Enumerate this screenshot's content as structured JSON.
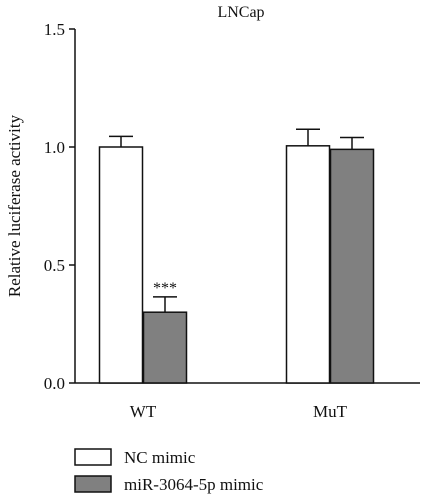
{
  "chart_data": {
    "type": "bar",
    "title": "LNCap",
    "ylabel": "Relative luciferase activity",
    "xlabel": "",
    "ylim": [
      0,
      1.5
    ],
    "yticks": [
      0.0,
      0.5,
      1.0,
      1.5
    ],
    "ytick_labels": [
      "0.0",
      "0.5",
      "1.0",
      "1.5"
    ],
    "categories": [
      "WT",
      "MuT"
    ],
    "series": [
      {
        "name": "NC mimic",
        "values": [
          1.0,
          1.005
        ],
        "errors": [
          0.045,
          0.07
        ],
        "fill": "#ffffff"
      },
      {
        "name": "miR-3064-5p mimic",
        "values": [
          0.3,
          0.99
        ],
        "errors": [
          0.065,
          0.05
        ],
        "fill": "#808080"
      }
    ],
    "annotations": [
      {
        "text": "***",
        "category": "WT",
        "series": "miR-3064-5p mimic"
      }
    ],
    "legend": "bottom-left",
    "grid": false
  }
}
